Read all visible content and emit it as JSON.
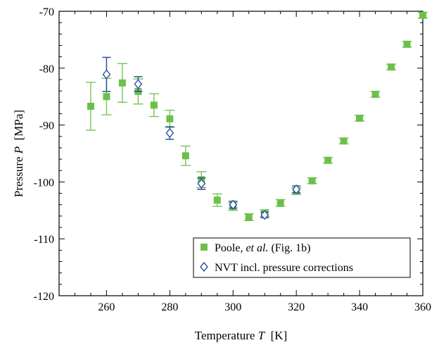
{
  "chart_data": {
    "type": "scatter",
    "xlabel": {
      "prefix": "Temperature ",
      "symbol": "T",
      "unit": "  [K]"
    },
    "ylabel": {
      "prefix": "Pressure ",
      "symbol": "P",
      "unit": "  [MPa]"
    },
    "xlim": [
      245,
      360
    ],
    "ylim": [
      -120,
      -70
    ],
    "xticks": [
      260,
      280,
      300,
      320,
      340,
      360
    ],
    "yticks": [
      -120,
      -110,
      -100,
      -90,
      -80,
      -70
    ],
    "grid": false,
    "legend_position": "bottom-right",
    "series": [
      {
        "name": "Poole, et al. (Fig. 1b)",
        "legend_parts": [
          "Poole, ",
          "et al.",
          " (Fig. 1b)"
        ],
        "marker": "filled-square",
        "color": "#6cc04a",
        "points": [
          {
            "x": 255,
            "y": -86.7,
            "err": 4.2
          },
          {
            "x": 260,
            "y": -85.0,
            "err": 3.2
          },
          {
            "x": 265,
            "y": -82.6,
            "err": 3.4
          },
          {
            "x": 270,
            "y": -84.1,
            "err": 2.2
          },
          {
            "x": 275,
            "y": -86.5,
            "err": 2.0
          },
          {
            "x": 280,
            "y": -88.9,
            "err": 1.5
          },
          {
            "x": 285,
            "y": -95.4,
            "err": 1.7
          },
          {
            "x": 290,
            "y": -99.6,
            "err": 1.4
          },
          {
            "x": 295,
            "y": -103.2,
            "err": 1.1
          },
          {
            "x": 300,
            "y": -104.3,
            "err": 0.7
          },
          {
            "x": 305,
            "y": -106.2,
            "err": 0.6
          },
          {
            "x": 310,
            "y": -105.5,
            "err": 0.6
          },
          {
            "x": 315,
            "y": -103.7,
            "err": 0.6
          },
          {
            "x": 320,
            "y": -101.6,
            "err": 0.6
          },
          {
            "x": 325,
            "y": -99.8,
            "err": 0.5
          },
          {
            "x": 330,
            "y": -96.2,
            "err": 0.5
          },
          {
            "x": 335,
            "y": -92.8,
            "err": 0.5
          },
          {
            "x": 340,
            "y": -88.8,
            "err": 0.5
          },
          {
            "x": 345,
            "y": -84.6,
            "err": 0.5
          },
          {
            "x": 350,
            "y": -79.8,
            "err": 0.5
          },
          {
            "x": 355,
            "y": -75.8,
            "err": 0.5
          },
          {
            "x": 360,
            "y": -70.7,
            "err": 0.5
          }
        ]
      },
      {
        "name": "NVT incl. pressure corrections",
        "legend_parts": [
          "NVT incl. pressure corrections"
        ],
        "marker": "open-diamond",
        "color": "#2d4fa3",
        "points": [
          {
            "x": 260,
            "y": -81.1,
            "err": 3.0
          },
          {
            "x": 270,
            "y": -82.8,
            "err": 1.3
          },
          {
            "x": 280,
            "y": -91.4,
            "err": 1.1
          },
          {
            "x": 290,
            "y": -100.3,
            "err": 1.0
          },
          {
            "x": 300,
            "y": -104.0,
            "err": 0.6
          },
          {
            "x": 310,
            "y": -105.8,
            "err": 0.5
          },
          {
            "x": 320,
            "y": -101.3,
            "err": 0.6
          }
        ]
      }
    ]
  }
}
